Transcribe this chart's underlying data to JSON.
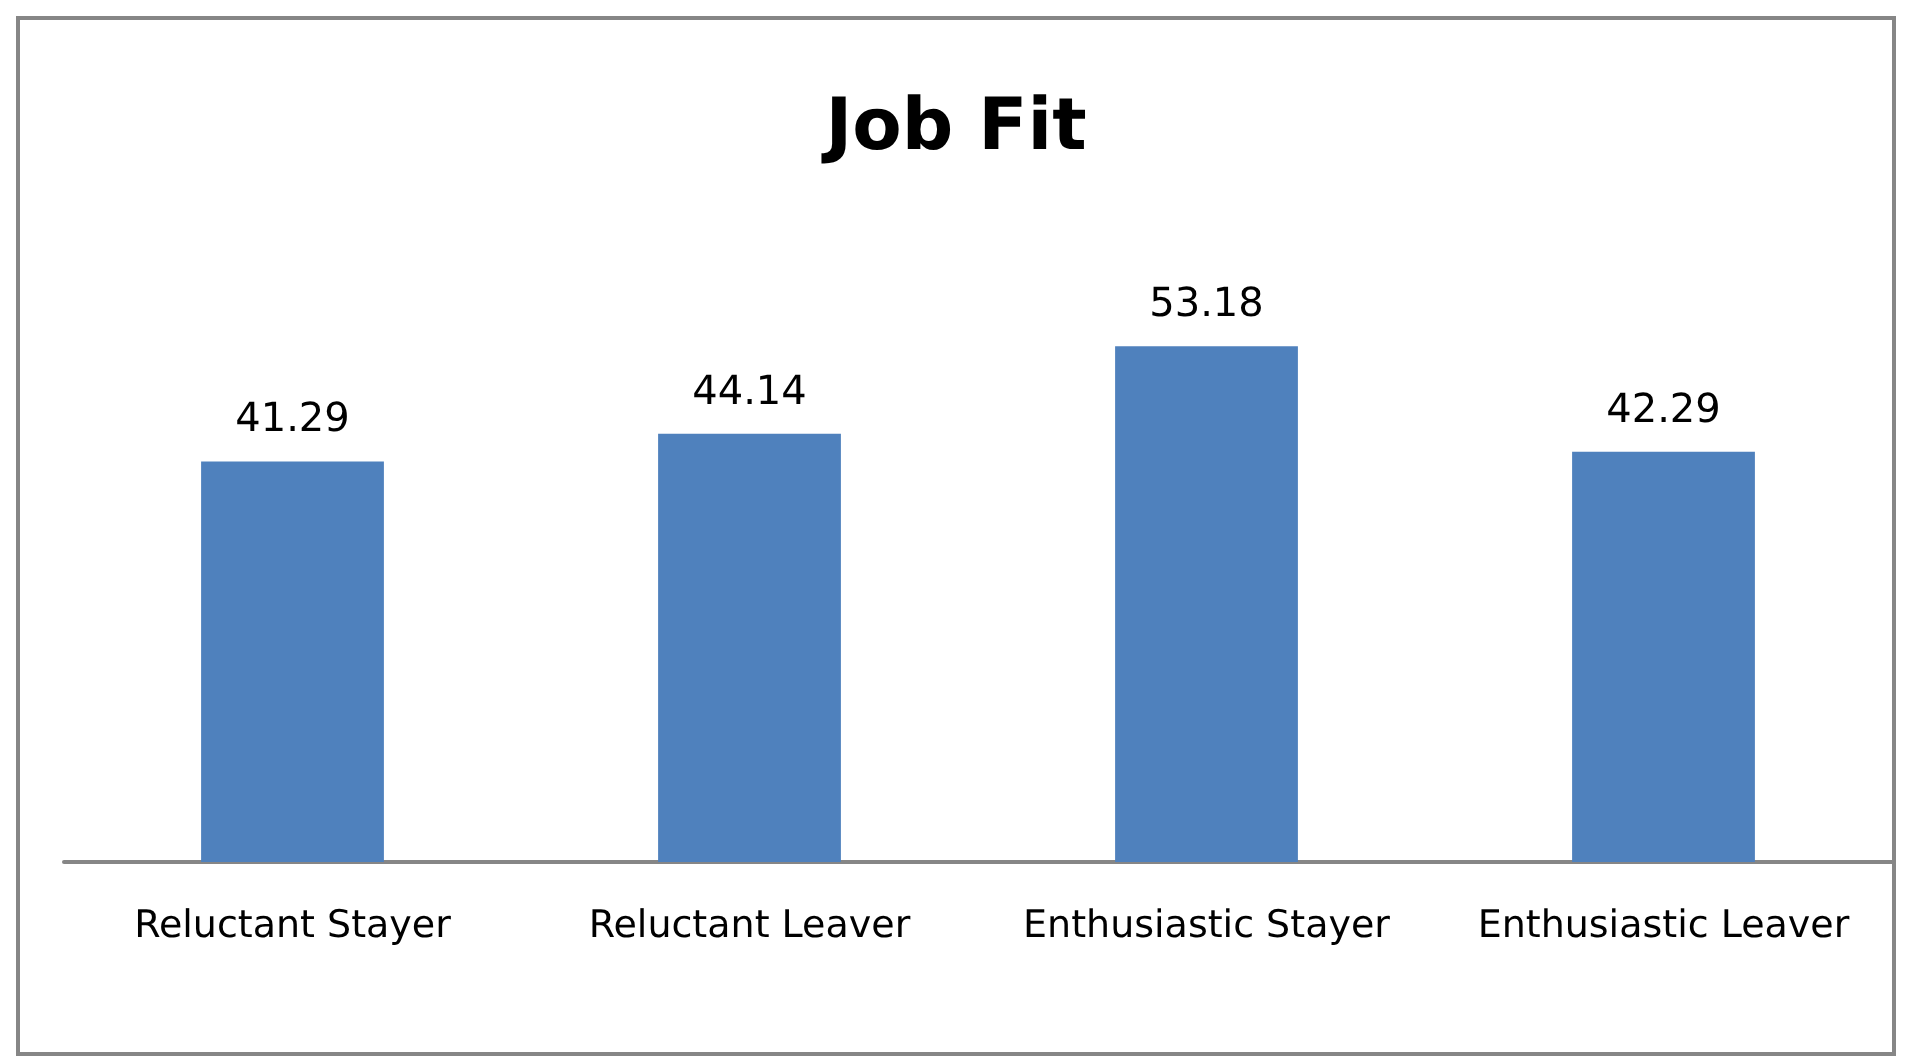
{
  "chart_data": {
    "type": "bar",
    "title": "Job Fit",
    "categories": [
      "Reluctant Stayer",
      "Reluctant Leaver",
      "Enthusiastic Stayer",
      "Enthusiastic Leaver"
    ],
    "values": [
      41.29,
      44.14,
      53.18,
      42.29
    ],
    "color": "#4f81bd",
    "data_labels": true
  }
}
